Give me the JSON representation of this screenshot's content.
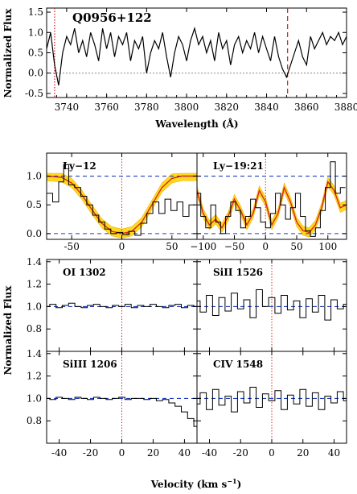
{
  "chart_data": [
    {
      "id": "spectrum",
      "type": "line",
      "title": "Q0956+122",
      "xlabel": "Wavelength (Å)",
      "ylabel": "Normalized Flux",
      "xlim": [
        3730,
        3880
      ],
      "ylim": [
        -0.6,
        1.6
      ],
      "xticks": [
        3740,
        3760,
        3780,
        3800,
        3820,
        3840,
        3860,
        3880
      ],
      "yticks": [
        -0.5,
        0.0,
        0.5,
        1.0,
        1.5
      ],
      "ytick_labels": [
        "-0.5",
        "0.0",
        "0.5",
        "1.0",
        "1.5"
      ],
      "markers": [
        {
          "x": 3734,
          "style": "dotted",
          "color": "#d62728"
        },
        {
          "x": 3850.5,
          "style": "dashed",
          "color": "#d62728"
        }
      ],
      "reference_line": {
        "y": 0.0,
        "style": "dotted",
        "color": "#888888"
      },
      "series": [
        {
          "x": [
            3730,
            3732,
            3734,
            3736,
            3738,
            3740,
            3742,
            3744,
            3746,
            3748,
            3750,
            3752,
            3754,
            3756,
            3758,
            3760,
            3762,
            3764,
            3766,
            3768,
            3770,
            3772,
            3774,
            3776,
            3778,
            3780,
            3782,
            3784,
            3786,
            3788,
            3790,
            3792,
            3794,
            3796,
            3798,
            3800,
            3802,
            3804,
            3806,
            3808,
            3810,
            3812,
            3814,
            3816,
            3818,
            3820,
            3822,
            3824,
            3826,
            3828,
            3830,
            3832,
            3834,
            3836,
            3838,
            3840,
            3842,
            3844,
            3846,
            3848,
            3850,
            3852,
            3854,
            3856,
            3858,
            3860,
            3862,
            3864,
            3866,
            3868,
            3870,
            3872,
            3874,
            3876,
            3878,
            3880
          ],
          "y": [
            0.6,
            1.0,
            0.2,
            -0.3,
            0.5,
            0.9,
            0.7,
            1.1,
            0.5,
            0.8,
            0.4,
            1.0,
            0.7,
            0.3,
            1.1,
            0.6,
            1.0,
            0.4,
            0.9,
            0.7,
            1.0,
            0.3,
            0.8,
            0.6,
            0.9,
            0.0,
            0.5,
            0.8,
            0.6,
            1.0,
            0.4,
            -0.1,
            0.5,
            0.9,
            0.7,
            0.3,
            0.8,
            1.1,
            0.7,
            0.9,
            0.5,
            0.8,
            0.3,
            1.0,
            0.6,
            0.8,
            0.2,
            0.7,
            0.9,
            0.5,
            0.8,
            0.6,
            1.0,
            0.5,
            0.9,
            0.6,
            0.3,
            0.9,
            0.4,
            0.1,
            -0.1,
            0.2,
            0.5,
            0.8,
            0.4,
            0.2,
            0.9,
            0.6,
            0.8,
            1.0,
            0.7,
            0.9,
            0.8,
            1.0,
            0.7,
            0.9
          ]
        }
      ]
    },
    {
      "id": "ly12",
      "type": "line",
      "label": "Ly−12",
      "xlim": [
        -75,
        75
      ],
      "ylim": [
        -0.1,
        1.4
      ],
      "xticks": [
        -50,
        0,
        50
      ],
      "yticks": [
        0.0,
        0.5,
        1.0
      ],
      "ytick_labels": [
        "0.0",
        "0.5",
        "1.0"
      ],
      "reference_lines": [
        {
          "y": 1.0,
          "style": "dashed",
          "color": "#1f3fbf"
        },
        {
          "y": 0.0,
          "style": "dashed",
          "color": "#1f3fbf"
        }
      ],
      "marker": {
        "x": 0,
        "style": "dotted",
        "color": "#d62728"
      },
      "data": {
        "x": [
          -72,
          -66,
          -60,
          -56,
          -50,
          -44,
          -38,
          -32,
          -26,
          -20,
          -14,
          -8,
          -2,
          4,
          10,
          16,
          22,
          28,
          34,
          40,
          46,
          52,
          58,
          64,
          70
        ],
        "y": [
          0.7,
          0.55,
          0.9,
          1.2,
          0.85,
          0.8,
          0.65,
          0.5,
          0.32,
          0.2,
          0.08,
          0.0,
          0.02,
          -0.02,
          0.04,
          -0.03,
          0.18,
          0.35,
          0.55,
          0.35,
          0.6,
          0.4,
          0.55,
          0.3,
          0.5
        ]
      },
      "model": {
        "x": [
          -75,
          -60,
          -50,
          -40,
          -30,
          -20,
          -10,
          0,
          10,
          20,
          30,
          40,
          50,
          60,
          75
        ],
        "y": [
          1.0,
          0.98,
          0.88,
          0.68,
          0.42,
          0.18,
          0.04,
          0.0,
          0.04,
          0.2,
          0.5,
          0.8,
          0.96,
          1.0,
          1.0
        ]
      }
    },
    {
      "id": "ly19_21",
      "type": "line",
      "label": "Ly−19:21",
      "xlim": [
        -110,
        130
      ],
      "ylim": [
        -0.1,
        1.4
      ],
      "xticks": [
        -100,
        -50,
        0,
        50,
        100
      ],
      "xtick_labels": [
        "−100",
        "−50",
        "0",
        "50",
        "100"
      ],
      "reference_lines": [
        {
          "y": 1.0,
          "style": "dashed",
          "color": "#1f3fbf"
        },
        {
          "y": 0.0,
          "style": "dashed",
          "color": "#1f3fbf"
        }
      ],
      "marker": {
        "x": 0,
        "style": "dotted",
        "color": "#d62728"
      },
      "data": {
        "x": [
          -108,
          -100,
          -92,
          -84,
          -76,
          -68,
          -60,
          -52,
          -44,
          -36,
          -28,
          -20,
          -12,
          -4,
          4,
          12,
          20,
          28,
          36,
          44,
          52,
          60,
          68,
          76,
          84,
          92,
          100,
          108,
          116,
          124
        ],
        "y": [
          0.7,
          0.3,
          0.1,
          0.5,
          0.2,
          0.0,
          0.3,
          0.55,
          0.4,
          0.1,
          0.3,
          0.6,
          0.45,
          0.2,
          0.1,
          0.35,
          0.7,
          0.5,
          0.25,
          0.45,
          0.7,
          0.3,
          0.05,
          -0.05,
          0.1,
          0.4,
          0.8,
          1.25,
          0.7,
          0.8
        ]
      },
      "model": {
        "x": [
          -110,
          -100,
          -90,
          -80,
          -70,
          -60,
          -50,
          -40,
          -30,
          -20,
          -10,
          0,
          10,
          20,
          30,
          40,
          50,
          60,
          70,
          80,
          90,
          100,
          110,
          120,
          130
        ],
        "y": [
          0.75,
          0.35,
          0.15,
          0.25,
          0.1,
          0.3,
          0.6,
          0.4,
          0.15,
          0.35,
          0.75,
          0.55,
          0.15,
          0.35,
          0.8,
          0.55,
          0.2,
          0.05,
          0.02,
          0.15,
          0.45,
          0.9,
          0.75,
          0.45,
          0.5
        ]
      }
    },
    {
      "id": "oi1302",
      "type": "line",
      "label": "OI 1302",
      "xlim": [
        -48,
        48
      ],
      "ylim": [
        0.6,
        1.42
      ],
      "yticks": [
        0.8,
        1.0,
        1.2,
        1.4
      ],
      "ytick_labels": [
        "0.8",
        "1.0",
        "1.2",
        "1.4"
      ],
      "reference_lines": [
        {
          "y": 1.0,
          "style": "dashed",
          "color": "#1f3fbf"
        }
      ],
      "marker": {
        "x": 0,
        "style": "dotted",
        "color": "#d62728"
      },
      "data": {
        "x": [
          -48,
          -44,
          -40,
          -36,
          -32,
          -28,
          -24,
          -20,
          -16,
          -12,
          -8,
          -4,
          0,
          4,
          8,
          12,
          16,
          20,
          24,
          28,
          32,
          36,
          40,
          44,
          48
        ],
        "y": [
          1.0,
          1.02,
          0.99,
          1.01,
          1.03,
          1.0,
          0.99,
          1.01,
          1.02,
          1.0,
          0.99,
          1.01,
          1.0,
          1.02,
          0.99,
          1.01,
          1.0,
          1.02,
          1.0,
          0.99,
          1.01,
          1.02,
          0.99,
          1.01,
          1.0
        ]
      }
    },
    {
      "id": "sii1526",
      "type": "line",
      "label": "SiII 1526",
      "xlim": [
        -48,
        48
      ],
      "ylim": [
        0.6,
        1.42
      ],
      "reference_lines": [
        {
          "y": 1.0,
          "style": "dashed",
          "color": "#1f3fbf"
        }
      ],
      "marker": {
        "x": 0,
        "style": "dotted",
        "color": "#d62728"
      },
      "data": {
        "x": [
          -48,
          -44,
          -40,
          -36,
          -32,
          -28,
          -24,
          -20,
          -16,
          -12,
          -8,
          -4,
          0,
          4,
          8,
          12,
          16,
          20,
          24,
          28,
          32,
          36,
          40,
          44,
          48
        ],
        "y": [
          1.05,
          0.95,
          1.1,
          0.92,
          1.08,
          0.96,
          1.12,
          0.98,
          1.06,
          0.9,
          1.15,
          1.0,
          1.08,
          0.94,
          1.1,
          0.97,
          1.05,
          0.9,
          1.07,
          0.95,
          1.1,
          0.88,
          1.06,
          0.98,
          1.02
        ]
      }
    },
    {
      "id": "siiii1206",
      "type": "line",
      "label": "SiIII 1206",
      "xlim": [
        -48,
        48
      ],
      "ylim": [
        0.6,
        1.42
      ],
      "xticks": [
        -40,
        -20,
        0,
        20,
        40
      ],
      "yticks": [
        0.8,
        1.0,
        1.2,
        1.4
      ],
      "ytick_labels": [
        "0.8",
        "1.0",
        "1.2",
        "1.4"
      ],
      "reference_lines": [
        {
          "y": 1.0,
          "style": "dashed",
          "color": "#1f3fbf"
        }
      ],
      "marker": {
        "x": 0,
        "style": "dotted",
        "color": "#d62728"
      },
      "data": {
        "x": [
          -48,
          -44,
          -40,
          -36,
          -32,
          -28,
          -24,
          -20,
          -16,
          -12,
          -8,
          -4,
          0,
          4,
          8,
          12,
          16,
          20,
          24,
          28,
          32,
          36,
          40,
          44,
          48
        ],
        "y": [
          1.0,
          0.99,
          1.01,
          1.0,
          0.99,
          1.01,
          1.0,
          0.99,
          1.01,
          1.0,
          0.99,
          1.0,
          1.01,
          0.99,
          1.0,
          1.0,
          0.99,
          1.0,
          0.98,
          0.99,
          0.96,
          0.93,
          0.88,
          0.82,
          0.75
        ]
      }
    },
    {
      "id": "civ1548",
      "type": "line",
      "label": "CIV 1548",
      "xlim": [
        -48,
        48
      ],
      "ylim": [
        0.6,
        1.42
      ],
      "xticks": [
        -40,
        -20,
        0,
        20,
        40
      ],
      "reference_lines": [
        {
          "y": 1.0,
          "style": "dashed",
          "color": "#1f3fbf"
        }
      ],
      "marker": {
        "x": 0,
        "style": "dotted",
        "color": "#d62728"
      },
      "data": {
        "x": [
          -48,
          -44,
          -40,
          -36,
          -32,
          -28,
          -24,
          -20,
          -16,
          -12,
          -8,
          -4,
          0,
          4,
          8,
          12,
          16,
          20,
          24,
          28,
          32,
          36,
          40,
          44,
          48
        ],
        "y": [
          0.95,
          1.05,
          0.9,
          1.08,
          0.94,
          1.02,
          0.88,
          1.06,
          0.96,
          1.1,
          0.92,
          1.04,
          0.98,
          1.07,
          0.9,
          1.03,
          0.95,
          1.08,
          0.93,
          1.05,
          0.9,
          1.02,
          0.96,
          1.06,
          0.98
        ]
      }
    }
  ],
  "shared": {
    "velocity_label": "Velocity (km s",
    "velocity_label_exp": "−1",
    "velocity_label_end": ")",
    "ylabel": "Normalized Flux"
  },
  "colors": {
    "data": "#000000",
    "model": "#d62728",
    "band": "#ffd700",
    "band_edge": "#f0a800",
    "ref": "#1f3fbf",
    "marker": "#d62728"
  }
}
